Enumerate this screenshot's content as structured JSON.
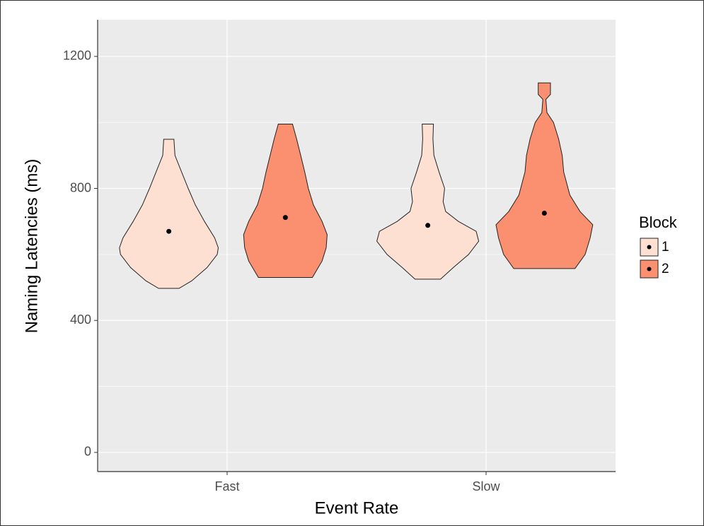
{
  "chart_data": {
    "type": "violin",
    "x_label": "Event Rate",
    "y_label": "Naming Latencies (ms)",
    "categories": [
      "Fast",
      "Slow"
    ],
    "ylim": [
      -58,
      1311
    ],
    "yticks": [
      0,
      400,
      800,
      1200
    ],
    "minor_yticks": [
      200,
      600,
      1000
    ],
    "grid": true,
    "legend_title": "Block",
    "legend_position": "right",
    "series": [
      {
        "name": "1",
        "color": "#fde0d2",
        "violins": [
          {
            "mean": 670,
            "profile": [
              [
                497,
                0.2
              ],
              [
                520,
                0.45
              ],
              [
                560,
                0.75
              ],
              [
                600,
                0.95
              ],
              [
                620,
                0.97
              ],
              [
                650,
                0.9
              ],
              [
                700,
                0.7
              ],
              [
                750,
                0.52
              ],
              [
                800,
                0.38
              ],
              [
                850,
                0.25
              ],
              [
                900,
                0.12
              ],
              [
                949,
                0.1
              ]
            ]
          },
          {
            "mean": 688,
            "profile": [
              [
                525,
                0.25
              ],
              [
                560,
                0.5
              ],
              [
                600,
                0.8
              ],
              [
                640,
                1.0
              ],
              [
                670,
                0.95
              ],
              [
                700,
                0.6
              ],
              [
                730,
                0.35
              ],
              [
                760,
                0.3
              ],
              [
                800,
                0.33
              ],
              [
                850,
                0.22
              ],
              [
                900,
                0.12
              ],
              [
                950,
                0.1
              ],
              [
                995,
                0.11
              ]
            ]
          }
        ]
      },
      {
        "name": "2",
        "color": "#fb9070",
        "violins": [
          {
            "mean": 712,
            "profile": [
              [
                530,
                0.53
              ],
              [
                580,
                0.72
              ],
              [
                620,
                0.8
              ],
              [
                660,
                0.82
              ],
              [
                700,
                0.72
              ],
              [
                750,
                0.55
              ],
              [
                800,
                0.45
              ],
              [
                850,
                0.38
              ],
              [
                900,
                0.3
              ],
              [
                950,
                0.22
              ],
              [
                995,
                0.14
              ]
            ]
          },
          {
            "mean": 725,
            "profile": [
              [
                557,
                0.6
              ],
              [
                600,
                0.8
              ],
              [
                650,
                0.9
              ],
              [
                690,
                0.95
              ],
              [
                730,
                0.7
              ],
              [
                780,
                0.5
              ],
              [
                850,
                0.38
              ],
              [
                900,
                0.35
              ],
              [
                950,
                0.28
              ],
              [
                1000,
                0.18
              ],
              [
                1030,
                0.05
              ],
              [
                1070,
                0.03
              ],
              [
                1085,
                0.12
              ],
              [
                1120,
                0.12
              ]
            ]
          }
        ]
      }
    ]
  }
}
